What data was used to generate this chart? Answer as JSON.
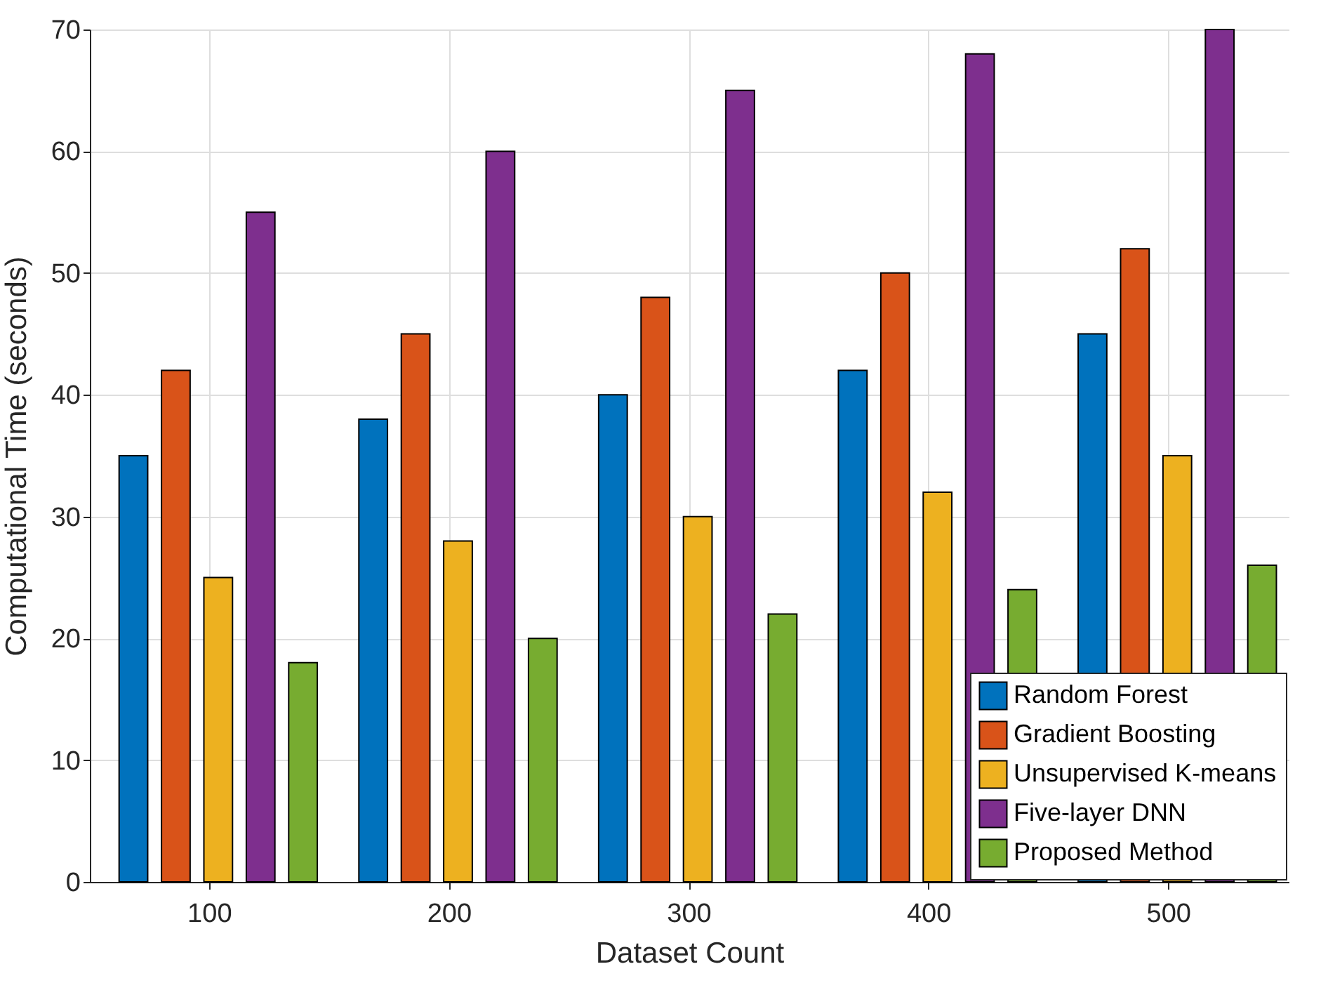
{
  "chart_data": {
    "type": "bar",
    "xlabel": "Dataset Count",
    "ylabel": "Computational Time (seconds)",
    "categories": [
      "100",
      "200",
      "300",
      "400",
      "500"
    ],
    "series": [
      {
        "name": "Random Forest",
        "color": "#0072bd",
        "values": [
          35,
          38,
          40,
          42,
          45
        ]
      },
      {
        "name": "Gradient Boosting",
        "color": "#d95319",
        "values": [
          42,
          45,
          48,
          50,
          52
        ]
      },
      {
        "name": "Unsupervised K-means",
        "color": "#edb120",
        "values": [
          25,
          28,
          30,
          32,
          35
        ]
      },
      {
        "name": "Five-layer DNN",
        "color": "#7e2f8e",
        "values": [
          55,
          60,
          65,
          68,
          70
        ]
      },
      {
        "name": "Proposed Method",
        "color": "#77ac30",
        "values": [
          18,
          20,
          22,
          24,
          26
        ]
      }
    ],
    "ylim": [
      0,
      70
    ],
    "yticks": [
      0,
      10,
      20,
      30,
      40,
      50,
      60,
      70
    ],
    "grid": true,
    "legend": "bottom right"
  }
}
